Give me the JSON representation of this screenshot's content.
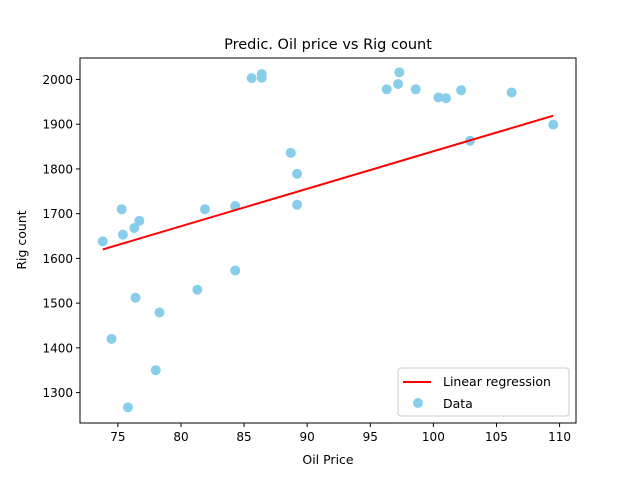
{
  "chart_data": {
    "type": "scatter",
    "title": "Predic. Oil price vs Rig count",
    "xlabel": "Oil Price",
    "ylabel": "Rig count",
    "xlim": [
      72.0,
      111.3
    ],
    "ylim": [
      1232,
      2048
    ],
    "xticks": [
      75,
      80,
      85,
      90,
      95,
      100,
      105,
      110
    ],
    "yticks": [
      1300,
      1400,
      1500,
      1600,
      1700,
      1800,
      1900,
      2000
    ],
    "grid": false,
    "legend_position": "bottom-right",
    "series": [
      {
        "name": "Data",
        "kind": "scatter",
        "color": "#87ceeb",
        "points": [
          [
            73.8,
            1638
          ],
          [
            74.5,
            1420
          ],
          [
            75.3,
            1710
          ],
          [
            75.4,
            1653
          ],
          [
            75.8,
            1267
          ],
          [
            76.3,
            1668
          ],
          [
            76.4,
            1512
          ],
          [
            76.7,
            1684
          ],
          [
            78.0,
            1350
          ],
          [
            78.3,
            1479
          ],
          [
            81.3,
            1530
          ],
          [
            81.9,
            1710
          ],
          [
            84.3,
            1717
          ],
          [
            84.3,
            1573
          ],
          [
            85.6,
            2003
          ],
          [
            86.4,
            2012
          ],
          [
            86.4,
            2004
          ],
          [
            88.7,
            1836
          ],
          [
            89.2,
            1789
          ],
          [
            89.2,
            1720
          ],
          [
            96.3,
            1978
          ],
          [
            97.2,
            1990
          ],
          [
            97.3,
            2016
          ],
          [
            98.6,
            1978
          ],
          [
            100.4,
            1960
          ],
          [
            101.0,
            1958
          ],
          [
            102.2,
            1976
          ],
          [
            102.9,
            1863
          ],
          [
            106.2,
            1971
          ],
          [
            109.5,
            1899
          ]
        ]
      },
      {
        "name": "Linear regression",
        "kind": "line",
        "color": "#ff0000",
        "points": [
          [
            73.8,
            1620
          ],
          [
            109.5,
            1919
          ]
        ]
      }
    ]
  }
}
